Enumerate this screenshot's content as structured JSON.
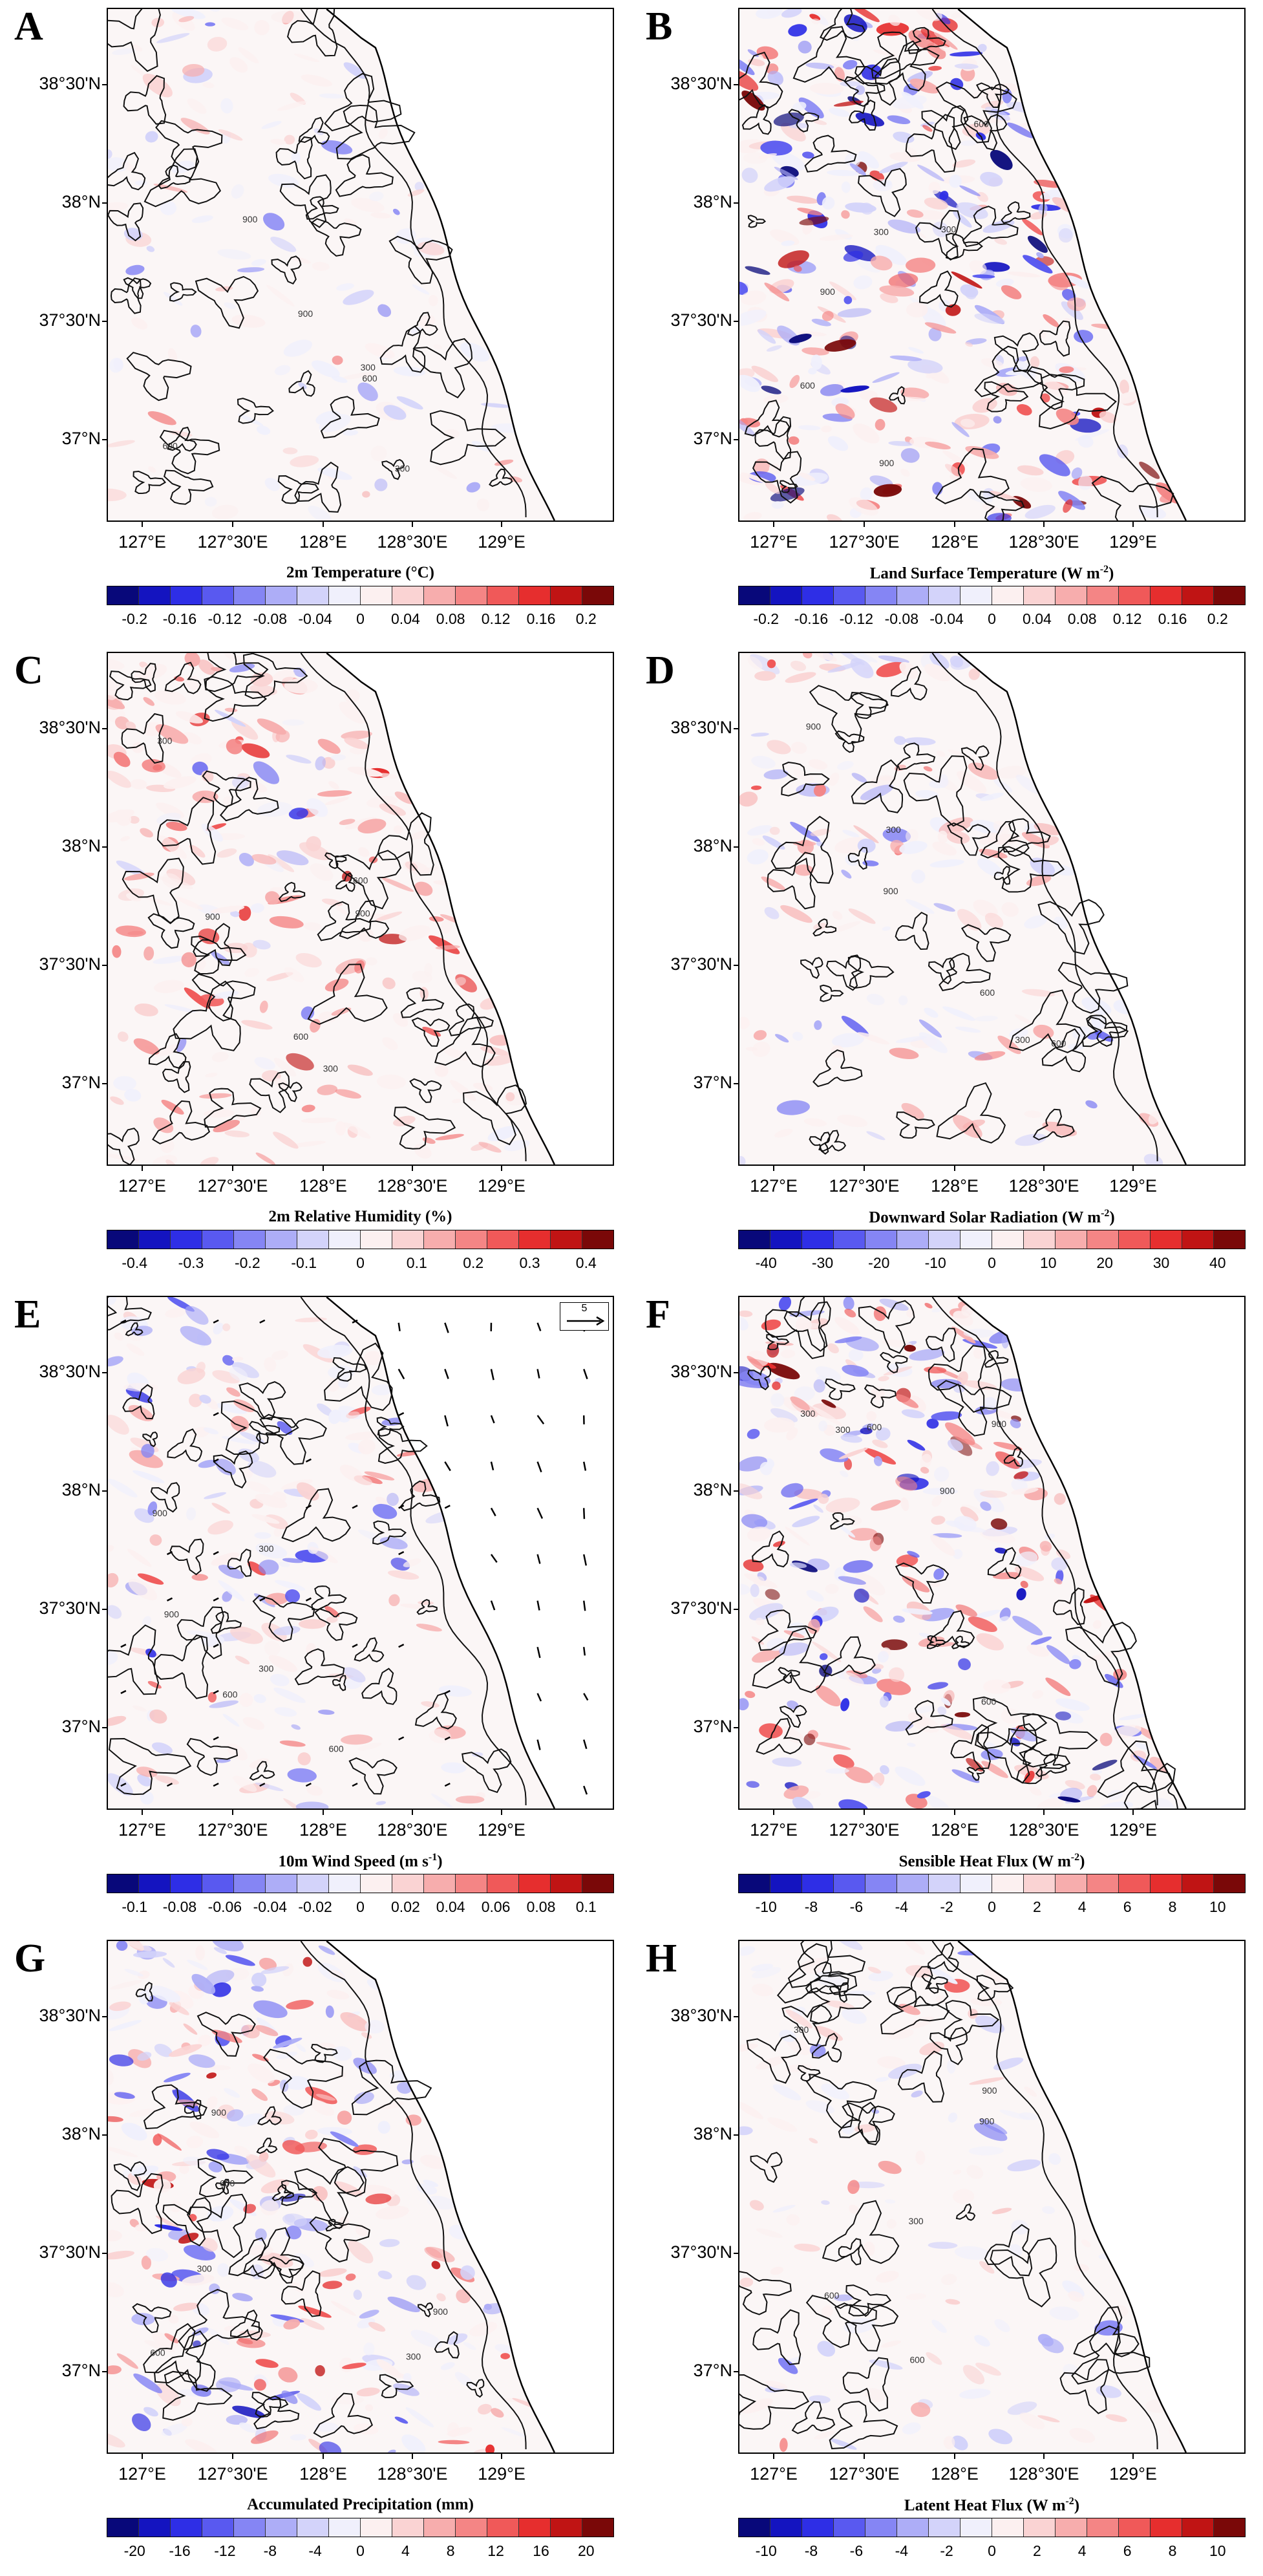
{
  "palette": [
    "#08087a",
    "#1414c0",
    "#2e2ee6",
    "#5959f0",
    "#8585f4",
    "#adadf7",
    "#d3d3fa",
    "#f0f0fc",
    "#fcf0f0",
    "#fad3d3",
    "#f7adad",
    "#f48585",
    "#f05959",
    "#e62e2e",
    "#c01414",
    "#7a0808"
  ],
  "lat_labels": [
    "38°30'N",
    "38°N",
    "37°30'N",
    "37°N"
  ],
  "lon_labels": [
    "127°E",
    "127°30'E",
    "128°E",
    "128°30'E",
    "129°E"
  ],
  "contour_labels": [
    "300",
    "600",
    "900"
  ],
  "panels": [
    {
      "id": "A",
      "letter": "A",
      "title": "2m Temperature (°C)",
      "title_unit_sup": "",
      "ticks": [
        "-0.2",
        "-0.16",
        "-0.12",
        "-0.08",
        "-0.04",
        "0",
        "0.04",
        "0.08",
        "0.12",
        "0.16",
        "0.2"
      ],
      "intensity": 0.25,
      "red_bias": 0.45
    },
    {
      "id": "B",
      "letter": "B",
      "title": "Land Surface Temperature (W m",
      "title_unit_sup": "-2",
      "ticks": [
        "-0.2",
        "-0.16",
        "-0.12",
        "-0.08",
        "-0.04",
        "0",
        "0.04",
        "0.08",
        "0.12",
        "0.16",
        "0.2"
      ],
      "intensity": 0.95,
      "red_bias": 0.5
    },
    {
      "id": "C",
      "letter": "C",
      "title": "2m Relative Humidity (%)",
      "title_unit_sup": "",
      "ticks": [
        "-0.4",
        "-0.3",
        "-0.2",
        "-0.1",
        "0",
        "0.1",
        "0.2",
        "0.3",
        "0.4"
      ],
      "intensity": 0.6,
      "red_bias": 0.75
    },
    {
      "id": "D",
      "letter": "D",
      "title": "Downward Solar Radiation (W m",
      "title_unit_sup": "-2",
      "ticks": [
        "-40",
        "-30",
        "-20",
        "-10",
        "0",
        "10",
        "20",
        "30",
        "40"
      ],
      "intensity": 0.35,
      "red_bias": 0.5
    },
    {
      "id": "E",
      "letter": "E",
      "title": "10m Wind Speed (m s",
      "title_unit_sup": "-1",
      "ticks": [
        "-0.1",
        "-0.08",
        "-0.06",
        "-0.04",
        "-0.02",
        "0",
        "0.02",
        "0.04",
        "0.06",
        "0.08",
        "0.1"
      ],
      "intensity": 0.45,
      "red_bias": 0.5,
      "wind_ref": "5"
    },
    {
      "id": "F",
      "letter": "F",
      "title": "Sensible Heat Flux (W m",
      "title_unit_sup": "-2",
      "ticks": [
        "-10",
        "-8",
        "-6",
        "-4",
        "-2",
        "0",
        "2",
        "4",
        "6",
        "8",
        "10"
      ],
      "intensity": 0.9,
      "red_bias": 0.5
    },
    {
      "id": "G",
      "letter": "G",
      "title": "Accumulated Precipitation (mm)",
      "title_unit_sup": "",
      "ticks": [
        "-20",
        "-16",
        "-12",
        "-8",
        "-4",
        "0",
        "4",
        "8",
        "12",
        "16",
        "20"
      ],
      "intensity": 0.75,
      "red_bias": 0.5
    },
    {
      "id": "H",
      "letter": "H",
      "title": "Latent Heat Flux (W m",
      "title_unit_sup": "-2",
      "ticks": [
        "-10",
        "-8",
        "-6",
        "-4",
        "-2",
        "0",
        "2",
        "4",
        "6",
        "8",
        "10"
      ],
      "intensity": 0.25,
      "red_bias": 0.5
    }
  ]
}
